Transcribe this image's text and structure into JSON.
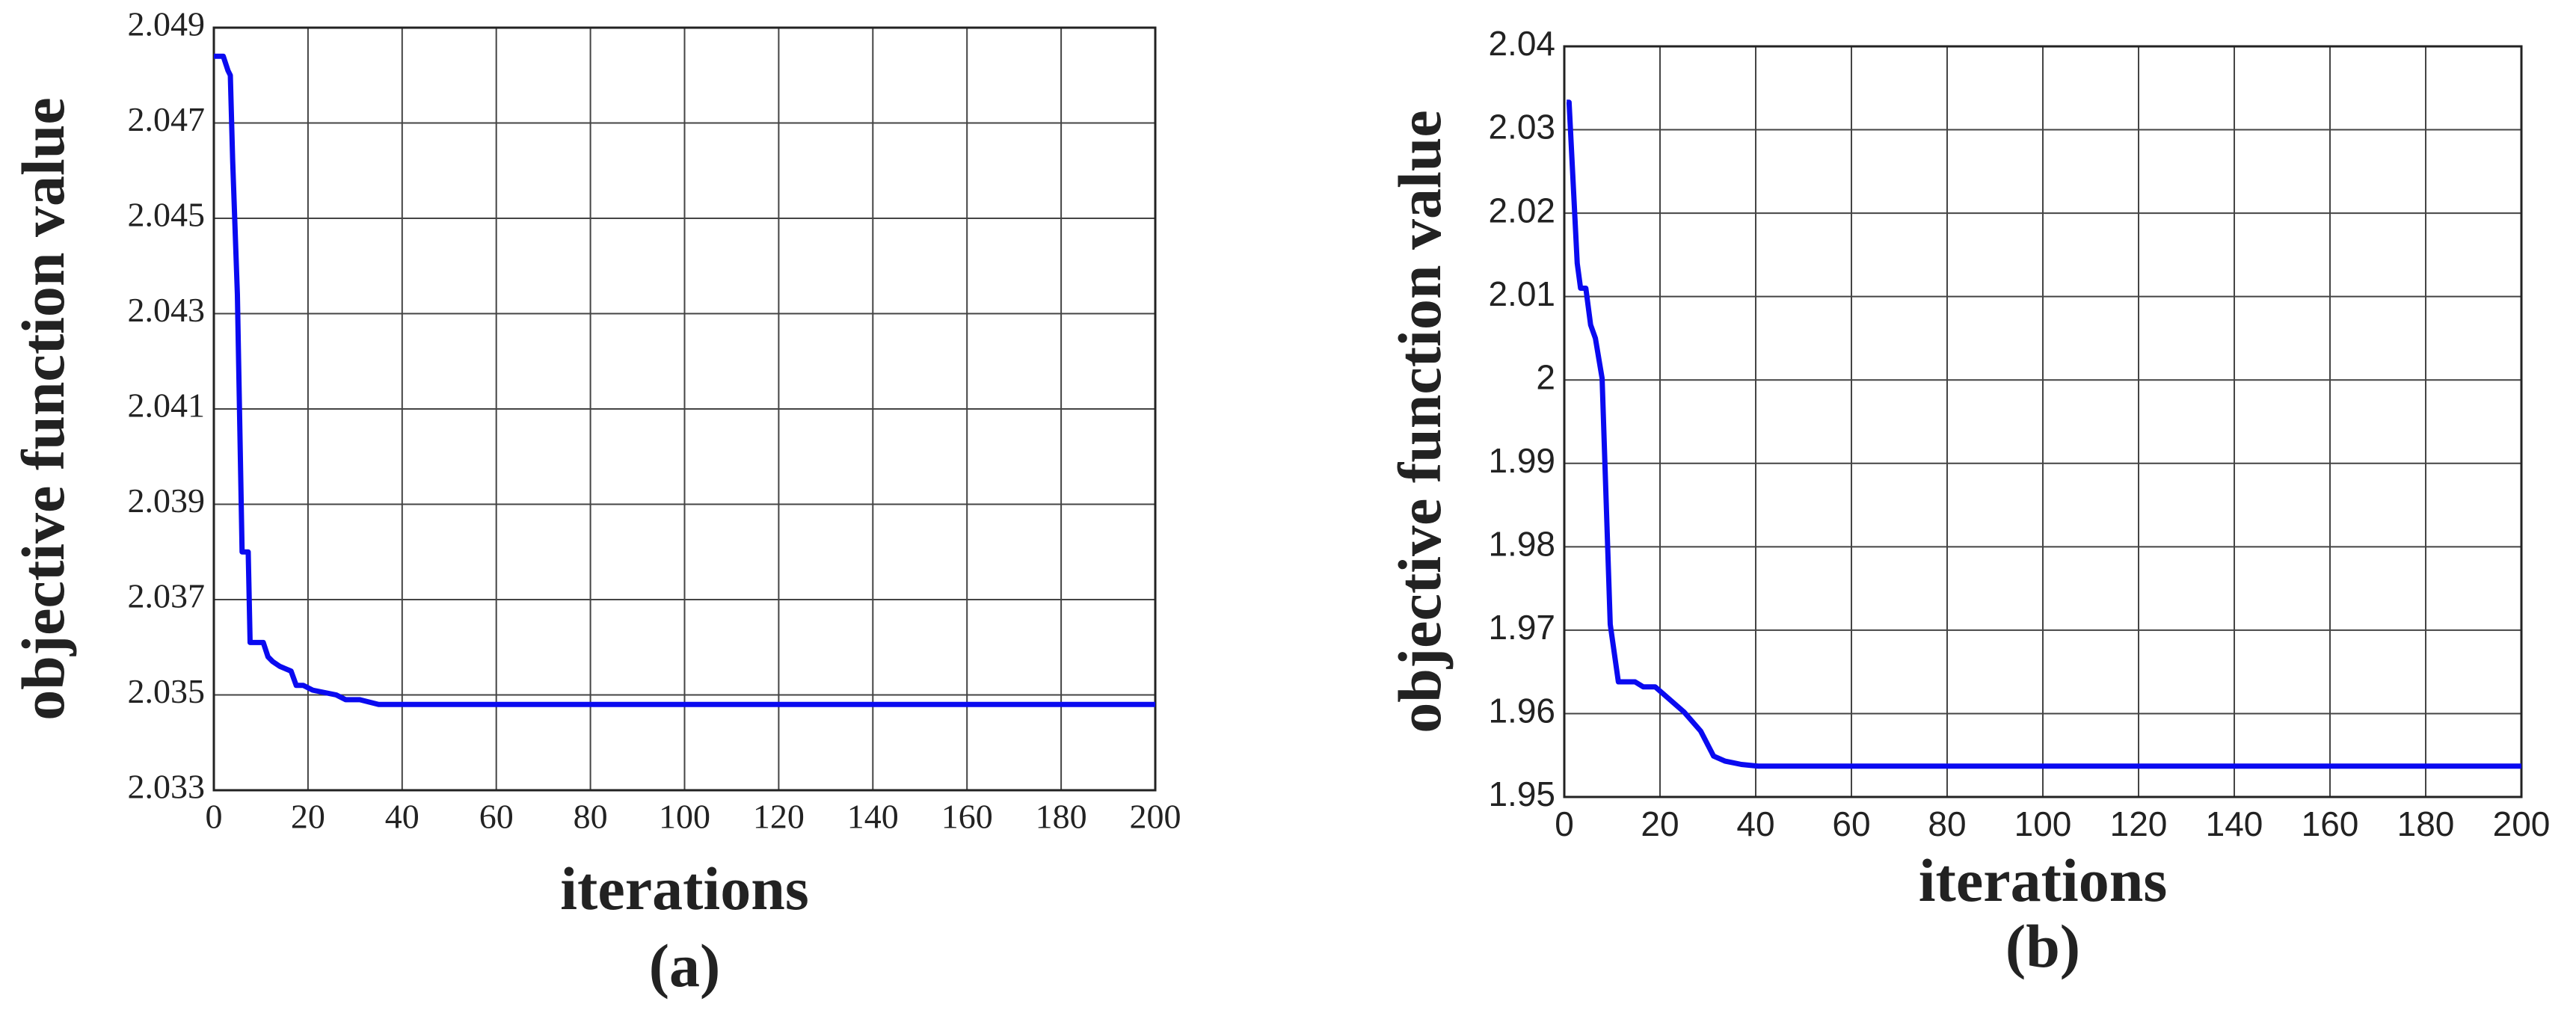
{
  "chart_data": [
    {
      "type": "line",
      "panel_label": "(a)",
      "x_label": "iterations",
      "y_label": "objective function value",
      "x": [
        0,
        2,
        3,
        3.5,
        4,
        5,
        6,
        6.5,
        7.3,
        7.7,
        10.5,
        11.5,
        12.5,
        14,
        16.4,
        17.5,
        19,
        21,
        26,
        28,
        31,
        35,
        40,
        200
      ],
      "values": [
        2.0484,
        2.0484,
        2.0481,
        2.048,
        2.0462,
        2.0434,
        2.038,
        2.038,
        2.038,
        2.0361,
        2.0361,
        2.0358,
        2.0357,
        2.0356,
        2.0355,
        2.0352,
        2.0352,
        2.0351,
        2.035,
        2.0349,
        2.0349,
        2.0348,
        2.0348,
        2.0348
      ],
      "color": "#0a0af0",
      "xlim": [
        0,
        200
      ],
      "xticks": [
        0,
        20,
        40,
        60,
        80,
        100,
        120,
        140,
        160,
        180,
        200
      ],
      "ylim": [
        2.033,
        2.049
      ],
      "yticks": [
        2.033,
        2.035,
        2.037,
        2.039,
        2.041,
        2.043,
        2.045,
        2.047,
        2.049
      ],
      "grid": true
    },
    {
      "type": "line",
      "panel_label": "(b)",
      "x_label": "iterations",
      "y_label": "objective function value",
      "x": [
        0.5,
        1,
        2.7,
        3.4,
        4.5,
        5.5,
        6.5,
        7.9,
        9.6,
        11.3,
        14.8,
        16.5,
        19,
        21.6,
        25,
        28.5,
        31.2,
        33.6,
        37,
        40.5,
        200
      ],
      "values": [
        2.0333,
        2.0333,
        2.014,
        2.011,
        2.011,
        2.0066,
        2.005,
        2.0002,
        1.9707,
        1.9638,
        1.9638,
        1.9632,
        1.9632,
        1.9619,
        1.9602,
        1.9579,
        1.9549,
        1.9543,
        1.9539,
        1.9537,
        1.9537
      ],
      "color": "#0a0af0",
      "xlim": [
        0,
        200
      ],
      "xticks": [
        0,
        20,
        40,
        60,
        80,
        100,
        120,
        140,
        160,
        180,
        200
      ],
      "ylim": [
        1.95,
        2.04
      ],
      "yticks": [
        1.95,
        1.96,
        1.97,
        1.98,
        1.99,
        2,
        2.01,
        2.02,
        2.03,
        2.04
      ],
      "grid": true
    }
  ]
}
